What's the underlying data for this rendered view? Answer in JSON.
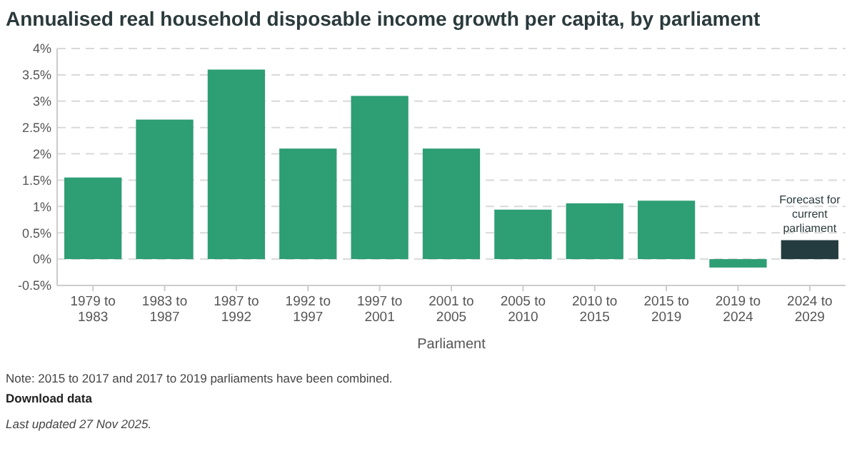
{
  "chart_data": {
    "type": "bar",
    "title": "Annualised real household disposable income growth per capita, by parliament",
    "xlabel": "Parliament",
    "categories": [
      "1979 to 1983",
      "1983 to 1987",
      "1987 to 1992",
      "1992 to 1997",
      "1997 to 2001",
      "2001 to 2005",
      "2005 to 2010",
      "2010 to 2015",
      "2015 to 2019",
      "2019 to 2024",
      "2024 to 2029"
    ],
    "values": [
      1.55,
      2.65,
      3.6,
      2.1,
      3.1,
      2.1,
      0.94,
      1.06,
      1.11,
      -0.16,
      0.36
    ],
    "colors": [
      "#2e9e74",
      "#2e9e74",
      "#2e9e74",
      "#2e9e74",
      "#2e9e74",
      "#2e9e74",
      "#2e9e74",
      "#2e9e74",
      "#2e9e74",
      "#2e9e74",
      "#243c3f"
    ],
    "ylim": [
      -0.5,
      4
    ],
    "yticks": [
      {
        "value": -0.5,
        "label": "-0.5%"
      },
      {
        "value": 0,
        "label": "0%"
      },
      {
        "value": 0.5,
        "label": "0.5%"
      },
      {
        "value": 1,
        "label": "1%"
      },
      {
        "value": 1.5,
        "label": "1.5%"
      },
      {
        "value": 2,
        "label": "2%"
      },
      {
        "value": 2.5,
        "label": "2.5%"
      },
      {
        "value": 3,
        "label": "3%"
      },
      {
        "value": 3.5,
        "label": "3.5%"
      },
      {
        "value": 4,
        "label": "4%"
      }
    ],
    "grid": "y",
    "annotations": [
      {
        "text": "Forecast for current parliament",
        "x": "2024 to 2029",
        "y": 0.36
      },
      "Note: 2015 to 2017 and 2017 to 2019 parliaments have been combined.",
      "Download data",
      "Last updated 27 Nov 2025."
    ]
  }
}
